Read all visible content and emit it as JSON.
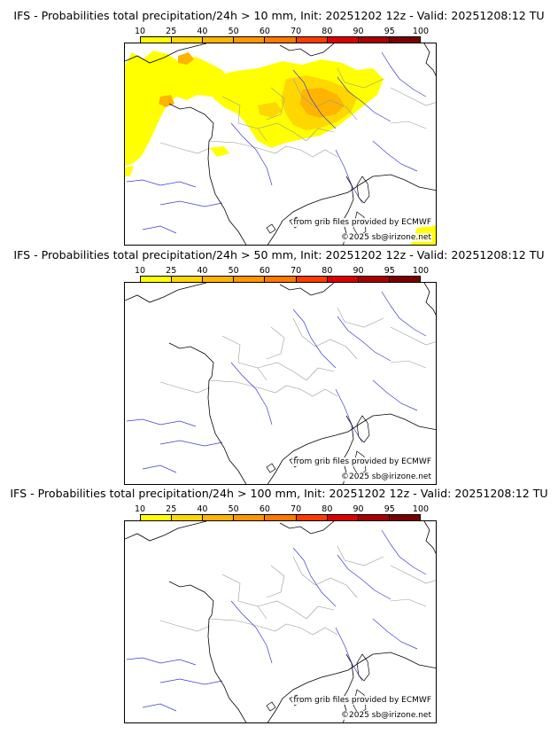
{
  "colorbar": {
    "ticks": [
      "10",
      "25",
      "40",
      "50",
      "60",
      "70",
      "80",
      "90",
      "95",
      "100"
    ],
    "colors": [
      "#ffff00",
      "#ffd700",
      "#ffb400",
      "#ff9600",
      "#ff7800",
      "#ff3c00",
      "#dc0000",
      "#aa0000",
      "#7a0000"
    ]
  },
  "map_style": {
    "coast_color": "#000000",
    "river_color": "#3b3bd6",
    "border_color": "#9a9a9a"
  },
  "panels": [
    {
      "title": "IFS - Probabilities total precipitation/24h > 10 mm, Init: 20251202 12z - Valid: 20251208:12 TU",
      "credit_grib": "from grib files provided by ECMWF",
      "credit_site": "©2025 sb@irizone.net",
      "has_precip": true
    },
    {
      "title": "IFS - Probabilities total precipitation/24h > 50 mm, Init: 20251202 12z - Valid: 20251208:12 TU",
      "credit_grib": "from grib files provided by ECMWF",
      "credit_site": "©2025 sb@irizone.net",
      "has_precip": false
    },
    {
      "title": "IFS - Probabilities total precipitation/24h > 100 mm, Init: 20251202 12z - Valid: 20251208:12 TU",
      "credit_grib": "from grib files provided by ECMWF",
      "credit_site": "©2025 sb@irizone.net",
      "has_precip": false
    }
  ]
}
